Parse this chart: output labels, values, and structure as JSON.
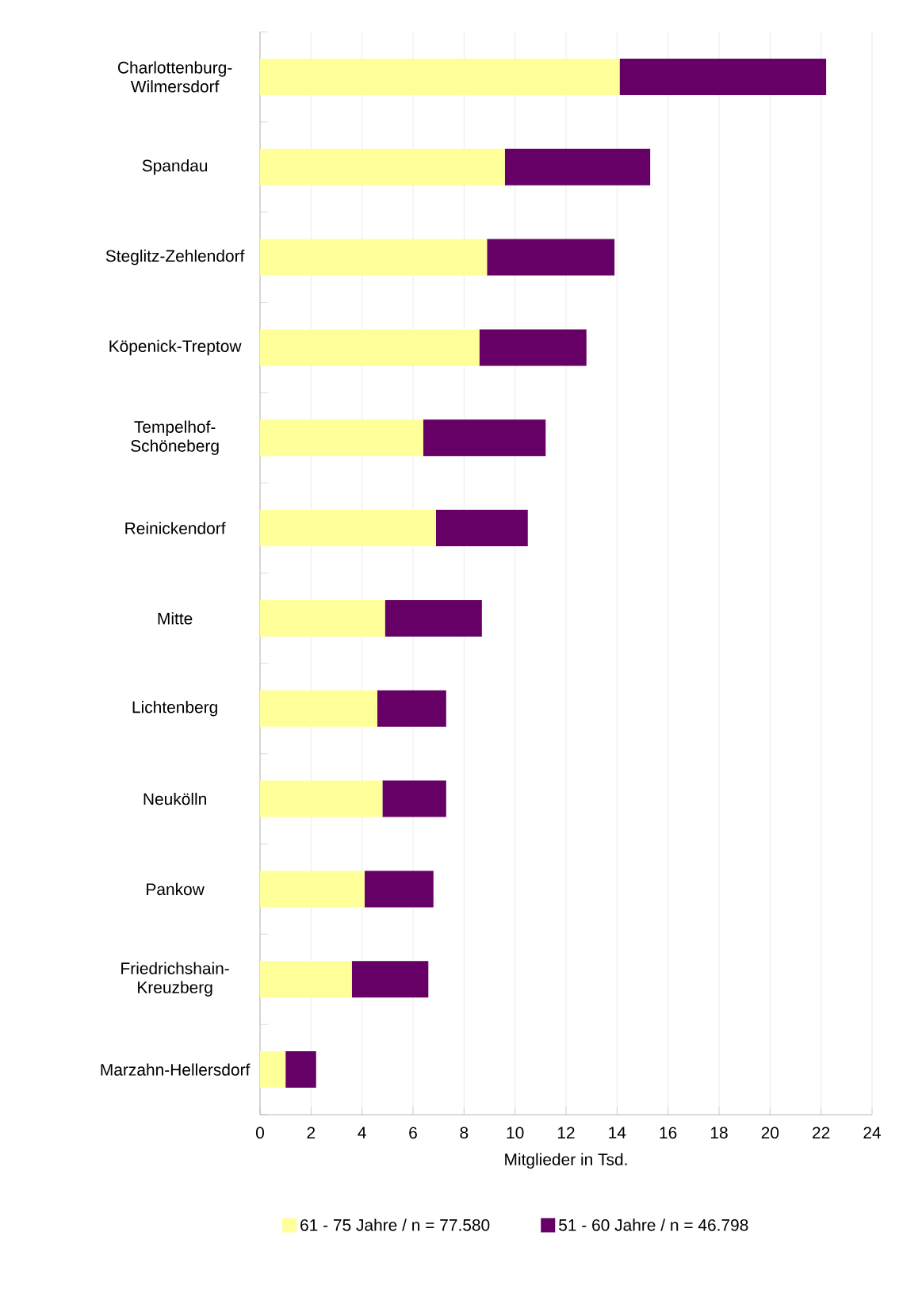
{
  "chart_data": {
    "type": "bar",
    "orientation": "horizontal",
    "stacked": true,
    "categories": [
      "Charlottenburg-Wilmersdorf",
      "Spandau",
      "Steglitz-Zehlendorf",
      "Köpenick-Treptow",
      "Tempelhof-Schöneberg",
      "Reinickendorf",
      "Mitte",
      "Lichtenberg",
      "Neukölln",
      "Pankow",
      "Friedrichshain-Kreuzberg",
      "Marzahn-Hellersdorf"
    ],
    "series": [
      {
        "name": "61 - 75 Jahre / n = 77.580",
        "color": "#ffff99",
        "values": [
          14.1,
          9.6,
          8.9,
          8.6,
          6.4,
          6.9,
          4.9,
          4.6,
          4.8,
          4.1,
          3.6,
          1.0
        ]
      },
      {
        "name": "51 - 60 Jahre / n = 46.798",
        "color": "#660066",
        "values": [
          8.1,
          5.7,
          5.0,
          4.2,
          4.8,
          3.6,
          3.8,
          2.7,
          2.5,
          2.7,
          3.0,
          1.2
        ]
      }
    ],
    "xlabel": "Mitglieder in Tsd.",
    "xlim": [
      0,
      24
    ],
    "xticks": [
      0,
      2,
      4,
      6,
      8,
      10,
      12,
      14,
      16,
      18,
      20,
      22,
      24
    ],
    "grid": "x",
    "legend": "bottom"
  }
}
